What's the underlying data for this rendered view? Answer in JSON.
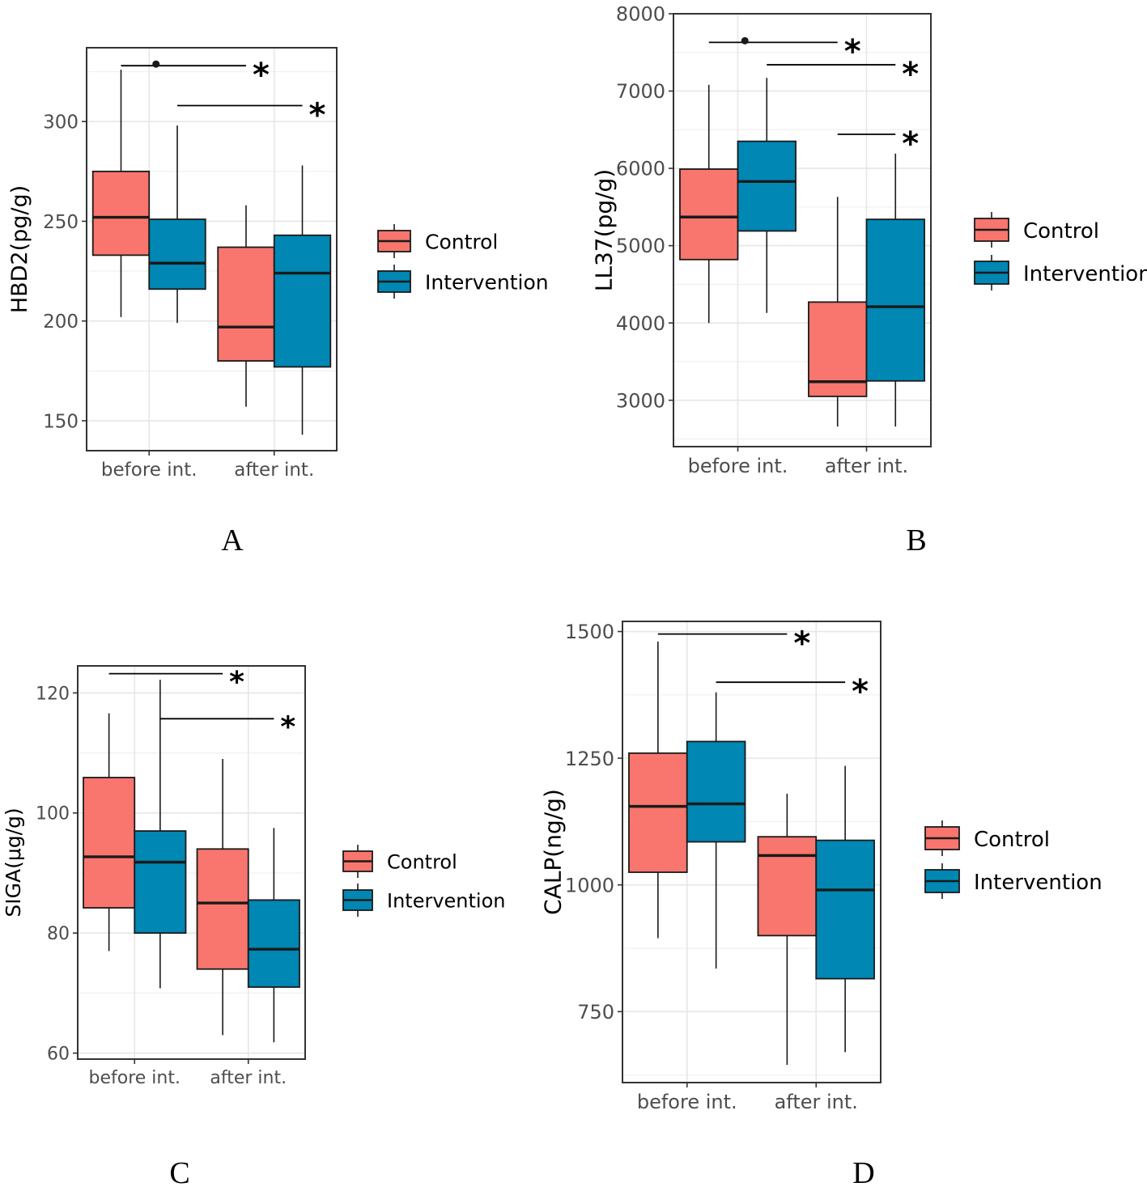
{
  "chart_data": [
    {
      "panel": "A",
      "type": "boxplot",
      "ylabel": "HBD2(pg/g)",
      "categories": [
        "before int.",
        "after int."
      ],
      "ylim": [
        135,
        337
      ],
      "yticks": [
        150,
        200,
        250,
        300
      ],
      "legend": [
        "Control",
        "Intervention"
      ],
      "colors": {
        "Control": "#f8766d",
        "Intervention": "#0087b3"
      },
      "series": [
        {
          "name": "Control",
          "boxes": [
            {
              "min": 202,
              "q1": 233,
              "median": 252,
              "q3": 275,
              "max": 326
            },
            {
              "min": 157,
              "q1": 180,
              "median": 197,
              "q3": 237,
              "max": 258
            }
          ]
        },
        {
          "name": "Intervention",
          "boxes": [
            {
              "min": 199,
              "q1": 216,
              "median": 229,
              "q3": 251,
              "max": 298
            },
            {
              "min": 143,
              "q1": 177,
              "median": 224,
              "q3": 243,
              "max": 278
            }
          ]
        }
      ],
      "significance": [
        {
          "from": "before int.|Control",
          "to": "after int.|Control",
          "y": 328,
          "label": "*",
          "dot": true
        },
        {
          "from": "before int.|Intervention",
          "to": "after int.|Intervention",
          "y": 308,
          "label": "*",
          "dot": false
        }
      ]
    },
    {
      "panel": "B",
      "type": "boxplot",
      "ylabel": "LL37(pg/g)",
      "categories": [
        "before int.",
        "after int."
      ],
      "ylim": [
        2400,
        8000
      ],
      "yticks": [
        3000,
        4000,
        5000,
        6000,
        7000,
        8000
      ],
      "legend": [
        "Control",
        "Intervention"
      ],
      "colors": {
        "Control": "#f8766d",
        "Intervention": "#0087b3"
      },
      "series": [
        {
          "name": "Control",
          "boxes": [
            {
              "min": 4000,
              "q1": 4820,
              "median": 5370,
              "q3": 5990,
              "max": 7080
            },
            {
              "min": 2660,
              "q1": 3050,
              "median": 3240,
              "q3": 4270,
              "max": 5630
            }
          ]
        },
        {
          "name": "Intervention",
          "boxes": [
            {
              "min": 4130,
              "q1": 5190,
              "median": 5830,
              "q3": 6350,
              "max": 7170
            },
            {
              "min": 2660,
              "q1": 3250,
              "median": 4210,
              "q3": 5340,
              "max": 6190
            }
          ]
        }
      ],
      "significance": [
        {
          "from": "before int.|Control",
          "to": "after int.|Control",
          "y": 7630,
          "label": "*",
          "dot": true
        },
        {
          "from": "before int.|Intervention",
          "to": "after int.|Intervention",
          "y": 7340,
          "label": "*",
          "dot": false
        },
        {
          "from": "after int.|Control",
          "to": "after int.|Intervention",
          "y": 6440,
          "label": "*",
          "dot": false
        }
      ]
    },
    {
      "panel": "C",
      "type": "boxplot",
      "ylabel": "SIGA(μg/g)",
      "categories": [
        "before int.",
        "after int."
      ],
      "ylim": [
        59,
        124.5
      ],
      "yticks": [
        60,
        80,
        100,
        120
      ],
      "legend": [
        "Control",
        "Intervention"
      ],
      "colors": {
        "Control": "#f8766d",
        "Intervention": "#0087b3"
      },
      "series": [
        {
          "name": "Control",
          "boxes": [
            {
              "min": 77,
              "q1": 84.2,
              "median": 92.7,
              "q3": 105.9,
              "max": 116.6
            },
            {
              "min": 63,
              "q1": 74,
              "median": 85,
              "q3": 94,
              "max": 109
            }
          ]
        },
        {
          "name": "Intervention",
          "boxes": [
            {
              "min": 70.8,
              "q1": 80,
              "median": 91.8,
              "q3": 97,
              "max": 122.2
            },
            {
              "min": 61.8,
              "q1": 71,
              "median": 77.3,
              "q3": 85.5,
              "max": 97.5
            }
          ]
        }
      ],
      "significance": [
        {
          "from": "before int.|Control",
          "to": "after int.|Control",
          "y": 123.2,
          "label": "*",
          "dot": false
        },
        {
          "from": "before int.|Intervention",
          "to": "after int.|Intervention",
          "y": 115.7,
          "label": "*",
          "dot": false
        }
      ]
    },
    {
      "panel": "D",
      "type": "boxplot",
      "ylabel": "CALP(ng/g)",
      "categories": [
        "before int.",
        "after int."
      ],
      "ylim": [
        610,
        1520
      ],
      "yticks": [
        750,
        1000,
        1250,
        1500
      ],
      "legend": [
        "Control",
        "Intervention"
      ],
      "colors": {
        "Control": "#f8766d",
        "Intervention": "#0087b3"
      },
      "series": [
        {
          "name": "Control",
          "boxes": [
            {
              "min": 895,
              "q1": 1025,
              "median": 1155,
              "q3": 1260,
              "max": 1480
            },
            {
              "min": 645,
              "q1": 900,
              "median": 1058,
              "q3": 1095,
              "max": 1180
            }
          ]
        },
        {
          "name": "Intervention",
          "boxes": [
            {
              "min": 835,
              "q1": 1085,
              "median": 1160,
              "q3": 1283,
              "max": 1380
            },
            {
              "min": 670,
              "q1": 815,
              "median": 990,
              "q3": 1088,
              "max": 1235
            }
          ]
        }
      ],
      "significance": [
        {
          "from": "before int.|Control",
          "to": "after int.|Control",
          "y": 1495,
          "label": "*",
          "dot": false
        },
        {
          "from": "before int.|Intervention",
          "to": "after int.|Intervention",
          "y": 1400,
          "label": "*",
          "dot": false
        }
      ]
    }
  ]
}
